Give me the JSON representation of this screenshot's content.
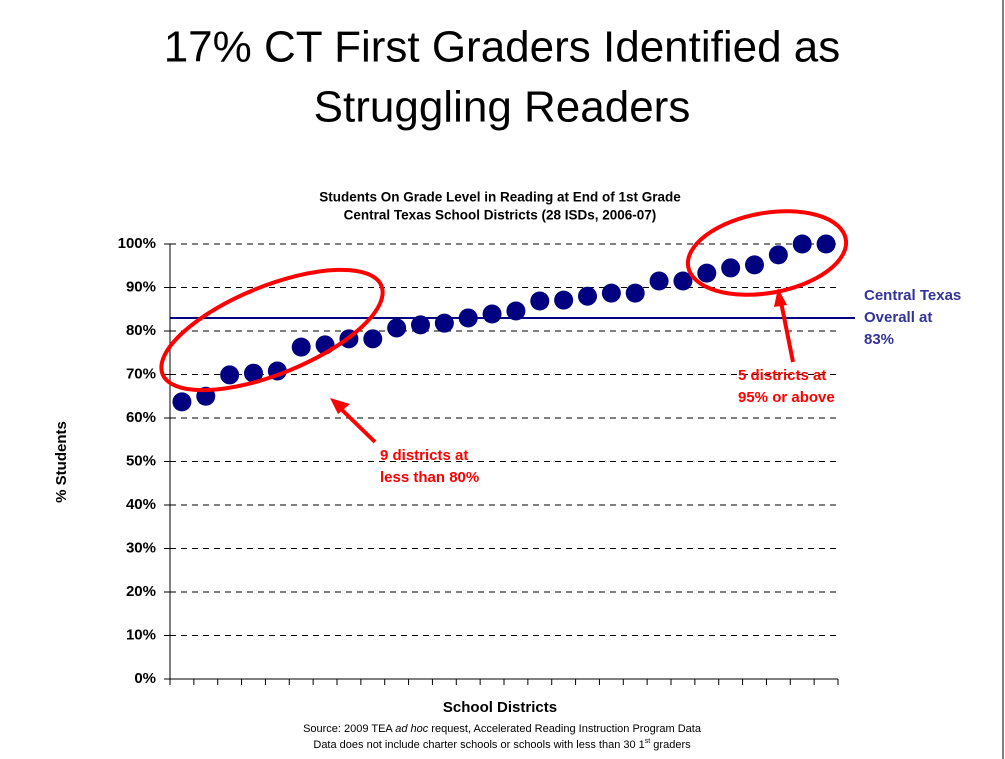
{
  "chart_data": {
    "type": "scatter",
    "title": [
      "17% CT First Graders Identified as",
      "Struggling Readers"
    ],
    "subtitle": [
      "Students On Grade Level in Reading at End of 1st Grade",
      "Central Texas School Districts (28 ISDs, 2006-07)"
    ],
    "x_label": "School Districts",
    "y_label": "% Students",
    "categories": [
      null,
      null,
      null,
      null,
      null,
      null,
      null,
      null,
      null,
      null,
      null,
      null,
      null,
      null,
      null,
      null,
      null,
      null,
      null,
      null,
      null,
      null,
      null,
      null,
      null,
      null,
      null,
      null
    ],
    "series": [
      {
        "color": "#000080",
        "values": [
          63.7,
          65,
          69.9,
          70.3,
          70.8,
          76.3,
          76.8,
          78.2,
          78.2,
          80.7,
          81.4,
          81.8,
          83,
          83.9,
          84.6,
          86.9,
          87.1,
          88,
          88.7,
          88.7,
          91.5,
          91.5,
          93.3,
          94.5,
          95.2,
          97.5,
          100,
          100
        ]
      }
    ],
    "ylim": [
      0,
      100
    ],
    "yticks": [
      {
        "value": 0,
        "label": "0%"
      },
      {
        "value": 10,
        "label": "10%"
      },
      {
        "value": 20,
        "label": "20%"
      },
      {
        "value": 30,
        "label": "30%"
      },
      {
        "value": 40,
        "label": "40%"
      },
      {
        "value": 50,
        "label": "50%"
      },
      {
        "value": 60,
        "label": "60%"
      },
      {
        "value": 70,
        "label": "70%"
      },
      {
        "value": 80,
        "label": "80%"
      },
      {
        "value": 90,
        "label": "90%"
      },
      {
        "value": 100,
        "label": "100%"
      }
    ],
    "grid": true,
    "reference_line": {
      "value": 83,
      "color": "#000080",
      "label": [
        "Central Texas",
        "Overall at",
        "83%"
      ]
    },
    "annotations": [
      {
        "lines": [
          "9  districts at",
          "less than 80%"
        ],
        "color": "#ff0000"
      },
      {
        "lines": [
          "5 districts at",
          "95% or above"
        ],
        "color": "#ff0000"
      }
    ],
    "source": [
      "Source:  2009 TEA ",
      "ad hoc",
      " request, Accelerated Reading Instruction Program Data"
    ],
    "note": [
      "Data does not include charter schools or schools with less than 30 1",
      "st",
      " graders"
    ]
  }
}
